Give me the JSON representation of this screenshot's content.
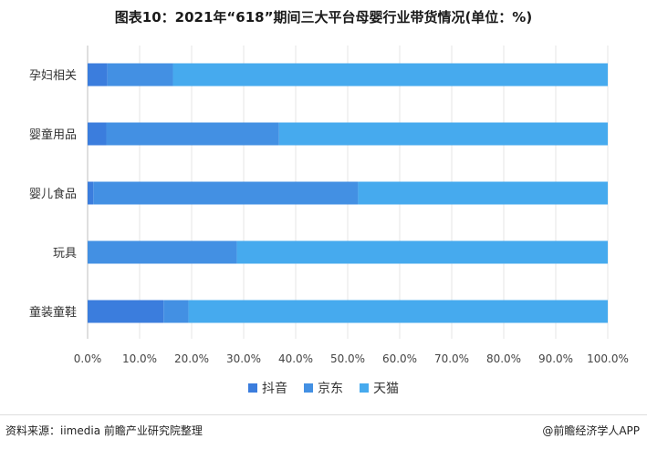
{
  "page": {
    "title": "图表10：2021年“618”期间三大平台母婴行业带货情况(单位：%)",
    "source": "资料来源：iimedia 前瞻产业研究院整理",
    "credit": "@前瞻经济学人APP"
  },
  "chart_data": {
    "type": "bar",
    "orientation": "horizontal",
    "stacked": true,
    "title": "图表10：2021年“618”期间三大平台母婴行业带货情况(单位：%)",
    "categories": [
      "孕妇相关",
      "婴童用品",
      "婴儿食品",
      "玩具",
      "童装童鞋"
    ],
    "series": [
      {
        "name": "抖音",
        "color": "#3b7ddd",
        "values": [
          3.8,
          3.6,
          1.1,
          0,
          14.6
        ]
      },
      {
        "name": "京东",
        "color": "#4390e3",
        "values": [
          12.6,
          33.2,
          50.9,
          28.7,
          4.8
        ]
      },
      {
        "name": "天猫",
        "color": "#46aaee",
        "values": [
          83.6,
          63.2,
          48.0,
          71.3,
          80.6
        ]
      }
    ],
    "xlim": [
      0,
      100
    ],
    "xticks": [
      "0.0%",
      "10.0%",
      "20.0%",
      "30.0%",
      "40.0%",
      "50.0%",
      "60.0%",
      "70.0%",
      "80.0%",
      "90.0%",
      "100.0%"
    ],
    "xlabel": "",
    "ylabel": "",
    "legend_position": "bottom"
  }
}
